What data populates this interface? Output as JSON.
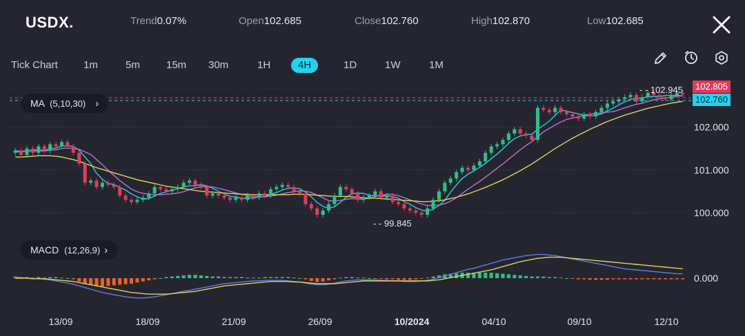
{
  "header": {
    "symbol": "USDX.",
    "trend_label": "Trend",
    "trend_value": "0.07%",
    "open_label": "Open",
    "open_value": "102.685",
    "close_label": "Close",
    "close_value": "102.760",
    "high_label": "High",
    "high_value": "102.870",
    "low_label": "Low",
    "low_value": "102.685"
  },
  "timeframes": [
    "Tick Chart",
    "1m",
    "5m",
    "15m",
    "30m",
    "1H",
    "4H",
    "1D",
    "1W",
    "1M"
  ],
  "active_timeframe": "4H",
  "icons": [
    "close-icon",
    "pencil-icon",
    "timer-icon",
    "settings-icon"
  ],
  "indicators": {
    "ma_label": "MA",
    "ma_params": "(5,10,30)",
    "macd_label": "MACD",
    "macd_params": "(12,26,9)"
  },
  "price_tags": {
    "last_price": "102.805",
    "close_price": "102.760",
    "max_marker": "102.945",
    "min_marker": "99.845"
  },
  "colors": {
    "background": "#252530",
    "up_candle": "#2fbf86",
    "down_candle": "#e23b5c",
    "ma5": "#29cfe6",
    "ma10": "#c070d8",
    "ma30": "#e3d45a",
    "macd_line": "#5d7fe0",
    "signal_line": "#e3d45a",
    "hist_pos": "#2fbf86",
    "hist_neg": "#e8622a",
    "accent": "#21d3ef"
  },
  "chart_data": {
    "type": "candlestick",
    "y_ticks": [
      "102.000",
      "101.000",
      "100.000"
    ],
    "y_range": [
      99.5,
      103.2
    ],
    "x_ticks": [
      "13/09",
      "18/09",
      "21/09",
      "26/09",
      "10/2024",
      "04/10",
      "09/10",
      "12/10"
    ],
    "close": [
      101.45,
      101.35,
      101.5,
      101.4,
      101.55,
      101.45,
      101.6,
      101.55,
      101.65,
      101.55,
      101.4,
      101.15,
      100.7,
      100.75,
      100.6,
      100.7,
      100.65,
      100.6,
      100.4,
      100.3,
      100.25,
      100.3,
      100.35,
      100.45,
      100.6,
      100.55,
      100.5,
      100.55,
      100.6,
      100.7,
      100.75,
      100.65,
      100.6,
      100.4,
      100.45,
      100.4,
      100.35,
      100.3,
      100.35,
      100.3,
      100.4,
      100.35,
      100.45,
      100.4,
      100.55,
      100.6,
      100.65,
      100.6,
      100.5,
      100.45,
      100.2,
      100.1,
      99.95,
      100.05,
      100.2,
      100.4,
      100.6,
      100.55,
      100.45,
      100.3,
      100.35,
      100.4,
      100.5,
      100.35,
      100.4,
      100.25,
      100.2,
      100.1,
      100.05,
      100.0,
      99.95,
      100.1,
      100.3,
      100.5,
      100.7,
      100.8,
      100.95,
      101.05,
      101.0,
      101.1,
      101.2,
      101.4,
      101.55,
      101.6,
      101.7,
      101.85,
      101.95,
      101.85,
      101.8,
      101.7,
      102.45,
      102.4,
      102.35,
      102.45,
      102.35,
      102.3,
      102.25,
      102.2,
      102.3,
      102.25,
      102.35,
      102.45,
      102.55,
      102.6,
      102.65,
      102.7,
      102.75,
      102.6,
      102.7,
      102.8,
      102.75,
      102.7,
      102.65,
      102.75,
      102.8,
      102.76
    ],
    "ma": [
      {
        "name": "MA5",
        "values": [
          101.42,
          101.42,
          101.44,
          101.46,
          101.47,
          101.45,
          101.5,
          101.51,
          101.56,
          101.56,
          101.55,
          101.46,
          101.3,
          101.15,
          100.92,
          100.78,
          100.68,
          100.66,
          100.59,
          100.53,
          100.44,
          100.37,
          100.32,
          100.33,
          100.39,
          100.45,
          100.49,
          100.53,
          100.56,
          100.6,
          100.63,
          100.63,
          100.66,
          100.62,
          100.57,
          100.5,
          100.44,
          100.38,
          100.37,
          100.34,
          100.34,
          100.34,
          100.37,
          100.38,
          100.43,
          100.47,
          100.53,
          100.57,
          100.58,
          100.56,
          100.48,
          100.37,
          100.24,
          100.15,
          100.1,
          100.14,
          100.24,
          100.36,
          100.44,
          100.46,
          100.45,
          100.41,
          100.4,
          100.38,
          100.4,
          100.38,
          100.34,
          100.26,
          100.2,
          100.12,
          100.06,
          100.04,
          100.08,
          100.17,
          100.29,
          100.48,
          100.65,
          100.8,
          100.9,
          100.98,
          101.06,
          101.15,
          101.26,
          101.37,
          101.49,
          101.62,
          101.73,
          101.79,
          101.83,
          101.83,
          101.95,
          102.04,
          102.14,
          102.27,
          102.4,
          102.37,
          102.34,
          102.31,
          102.28,
          102.26,
          102.27,
          102.31,
          102.38,
          102.44,
          102.52,
          102.59,
          102.65,
          102.66,
          102.68,
          102.71,
          102.72,
          102.71,
          102.74,
          102.74,
          102.74,
          102.73
        ]
      },
      {
        "name": "MA10",
        "values": [
          101.45,
          101.44,
          101.44,
          101.44,
          101.45,
          101.44,
          101.46,
          101.47,
          101.5,
          101.51,
          101.5,
          101.48,
          101.42,
          101.36,
          101.24,
          101.12,
          100.99,
          100.87,
          100.75,
          100.65,
          100.55,
          100.49,
          100.45,
          100.43,
          100.42,
          100.42,
          100.43,
          100.44,
          100.46,
          100.49,
          100.54,
          100.58,
          100.6,
          100.61,
          100.6,
          100.57,
          100.54,
          100.5,
          100.46,
          100.43,
          100.4,
          100.37,
          100.37,
          100.37,
          100.39,
          100.41,
          100.44,
          100.47,
          100.49,
          100.51,
          100.5,
          100.47,
          100.41,
          100.35,
          100.28,
          100.27,
          100.29,
          100.31,
          100.33,
          100.32,
          100.32,
          100.34,
          100.38,
          100.41,
          100.43,
          100.43,
          100.4,
          100.35,
          100.3,
          100.25,
          100.2,
          100.17,
          100.17,
          100.18,
          100.21,
          100.27,
          100.35,
          100.45,
          100.55,
          100.64,
          100.73,
          100.83,
          100.93,
          101.04,
          101.14,
          101.25,
          101.36,
          101.47,
          101.57,
          101.66,
          101.78,
          101.89,
          101.97,
          102.05,
          102.12,
          102.18,
          102.21,
          102.24,
          102.28,
          102.3,
          102.32,
          102.33,
          102.35,
          102.36,
          102.4,
          102.45,
          102.49,
          102.53,
          102.56,
          102.6,
          102.64,
          102.66,
          102.68,
          102.7,
          102.72,
          102.73
        ]
      },
      {
        "name": "MA30",
        "values": [
          101.3,
          101.3,
          101.31,
          101.32,
          101.33,
          101.33,
          101.33,
          101.32,
          101.3,
          101.27,
          101.24,
          101.2,
          101.15,
          101.1,
          101.05,
          101.01,
          100.97,
          100.93,
          100.89,
          100.85,
          100.81,
          100.77,
          100.74,
          100.71,
          100.68,
          100.65,
          100.62,
          100.6,
          100.58,
          100.56,
          100.54,
          100.52,
          100.5,
          100.49,
          100.48,
          100.47,
          100.46,
          100.45,
          100.44,
          100.43,
          100.43,
          100.42,
          100.42,
          100.42,
          100.42,
          100.42,
          100.42,
          100.42,
          100.43,
          100.43,
          100.43,
          100.42,
          100.41,
          100.4,
          100.39,
          100.38,
          100.38,
          100.38,
          100.37,
          100.36,
          100.35,
          100.34,
          100.34,
          100.33,
          100.32,
          100.31,
          100.3,
          100.29,
          100.28,
          100.27,
          100.26,
          100.26,
          100.27,
          100.28,
          100.3,
          100.33,
          100.36,
          100.4,
          100.44,
          100.49,
          100.54,
          100.59,
          100.65,
          100.71,
          100.77,
          100.84,
          100.91,
          100.98,
          101.06,
          101.14,
          101.23,
          101.32,
          101.41,
          101.5,
          101.58,
          101.66,
          101.74,
          101.81,
          101.88,
          101.95,
          102.01,
          102.07,
          102.13,
          102.18,
          102.23,
          102.28,
          102.32,
          102.36,
          102.4,
          102.44,
          102.47,
          102.5,
          102.53,
          102.56,
          102.58,
          102.6
        ]
      }
    ],
    "macd": {
      "y_ticks": [
        "0.000"
      ],
      "hist": [
        0.03,
        0.02,
        0.02,
        0.01,
        0.02,
        0.01,
        0.02,
        0.02,
        0.01,
        0.0,
        -0.02,
        -0.06,
        -0.1,
        -0.12,
        -0.14,
        -0.15,
        -0.14,
        -0.13,
        -0.12,
        -0.11,
        -0.1,
        -0.08,
        -0.06,
        -0.04,
        -0.02,
        0.0,
        0.02,
        0.03,
        0.04,
        0.05,
        0.06,
        0.06,
        0.05,
        0.04,
        0.03,
        0.03,
        0.02,
        0.02,
        0.02,
        0.02,
        0.01,
        0.01,
        0.01,
        0.02,
        0.02,
        0.02,
        0.02,
        0.02,
        0.01,
        0.0,
        -0.02,
        -0.05,
        -0.07,
        -0.06,
        -0.04,
        -0.02,
        0.01,
        0.02,
        0.02,
        0.01,
        0.01,
        0.0,
        -0.01,
        -0.01,
        -0.02,
        -0.02,
        -0.03,
        -0.03,
        -0.03,
        -0.02,
        -0.01,
        0.01,
        0.03,
        0.05,
        0.07,
        0.08,
        0.09,
        0.1,
        0.1,
        0.1,
        0.1,
        0.1,
        0.1,
        0.09,
        0.08,
        0.07,
        0.06,
        0.05,
        0.04,
        0.03,
        0.03,
        0.03,
        0.02,
        0.02,
        0.01,
        0.0,
        -0.01,
        -0.02,
        -0.02,
        -0.03,
        -0.03,
        -0.03,
        -0.03,
        -0.02,
        -0.02,
        -0.02,
        -0.02,
        -0.02,
        -0.02,
        -0.02,
        -0.02,
        -0.02,
        -0.02,
        -0.02,
        -0.02,
        -0.02
      ],
      "macd_line": [
        0.02,
        0.01,
        0.0,
        -0.01,
        -0.01,
        -0.02,
        -0.03,
        -0.05,
        -0.07,
        -0.09,
        -0.11,
        -0.14,
        -0.17,
        -0.2,
        -0.23,
        -0.26,
        -0.28,
        -0.3,
        -0.32,
        -0.34,
        -0.35,
        -0.36,
        -0.36,
        -0.35,
        -0.34,
        -0.32,
        -0.3,
        -0.28,
        -0.26,
        -0.24,
        -0.22,
        -0.2,
        -0.18,
        -0.16,
        -0.14,
        -0.12,
        -0.1,
        -0.09,
        -0.08,
        -0.07,
        -0.06,
        -0.05,
        -0.05,
        -0.04,
        -0.04,
        -0.04,
        -0.04,
        -0.05,
        -0.06,
        -0.07,
        -0.09,
        -0.11,
        -0.12,
        -0.12,
        -0.11,
        -0.09,
        -0.07,
        -0.05,
        -0.04,
        -0.03,
        -0.03,
        -0.03,
        -0.03,
        -0.04,
        -0.04,
        -0.05,
        -0.05,
        -0.06,
        -0.06,
        -0.06,
        -0.05,
        -0.04,
        -0.02,
        0.01,
        0.04,
        0.07,
        0.1,
        0.13,
        0.16,
        0.18,
        0.21,
        0.24,
        0.27,
        0.3,
        0.33,
        0.35,
        0.37,
        0.39,
        0.41,
        0.42,
        0.43,
        0.43,
        0.42,
        0.41,
        0.39,
        0.37,
        0.35,
        0.33,
        0.31,
        0.29,
        0.27,
        0.25,
        0.23,
        0.21,
        0.19,
        0.17,
        0.16,
        0.15,
        0.14,
        0.13,
        0.12,
        0.11,
        0.1,
        0.09,
        0.08,
        0.08
      ],
      "signal_line": [
        0.0,
        0.0,
        0.0,
        -0.01,
        -0.01,
        -0.01,
        -0.02,
        -0.03,
        -0.04,
        -0.05,
        -0.06,
        -0.08,
        -0.1,
        -0.12,
        -0.14,
        -0.16,
        -0.18,
        -0.2,
        -0.22,
        -0.24,
        -0.26,
        -0.27,
        -0.28,
        -0.29,
        -0.29,
        -0.29,
        -0.29,
        -0.28,
        -0.27,
        -0.26,
        -0.25,
        -0.24,
        -0.22,
        -0.2,
        -0.18,
        -0.16,
        -0.14,
        -0.13,
        -0.12,
        -0.11,
        -0.1,
        -0.09,
        -0.08,
        -0.07,
        -0.06,
        -0.06,
        -0.06,
        -0.06,
        -0.07,
        -0.07,
        -0.08,
        -0.09,
        -0.1,
        -0.1,
        -0.1,
        -0.1,
        -0.09,
        -0.08,
        -0.07,
        -0.06,
        -0.05,
        -0.05,
        -0.05,
        -0.05,
        -0.05,
        -0.05,
        -0.05,
        -0.05,
        -0.05,
        -0.05,
        -0.05,
        -0.05,
        -0.04,
        -0.03,
        -0.01,
        0.01,
        0.03,
        0.05,
        0.07,
        0.09,
        0.11,
        0.13,
        0.15,
        0.18,
        0.21,
        0.24,
        0.27,
        0.3,
        0.32,
        0.34,
        0.36,
        0.37,
        0.38,
        0.38,
        0.38,
        0.37,
        0.36,
        0.35,
        0.34,
        0.33,
        0.32,
        0.31,
        0.3,
        0.29,
        0.28,
        0.27,
        0.26,
        0.25,
        0.24,
        0.23,
        0.22,
        0.21,
        0.2,
        0.19,
        0.18,
        0.17
      ],
      "y_range": [
        -0.45,
        0.55
      ]
    }
  }
}
